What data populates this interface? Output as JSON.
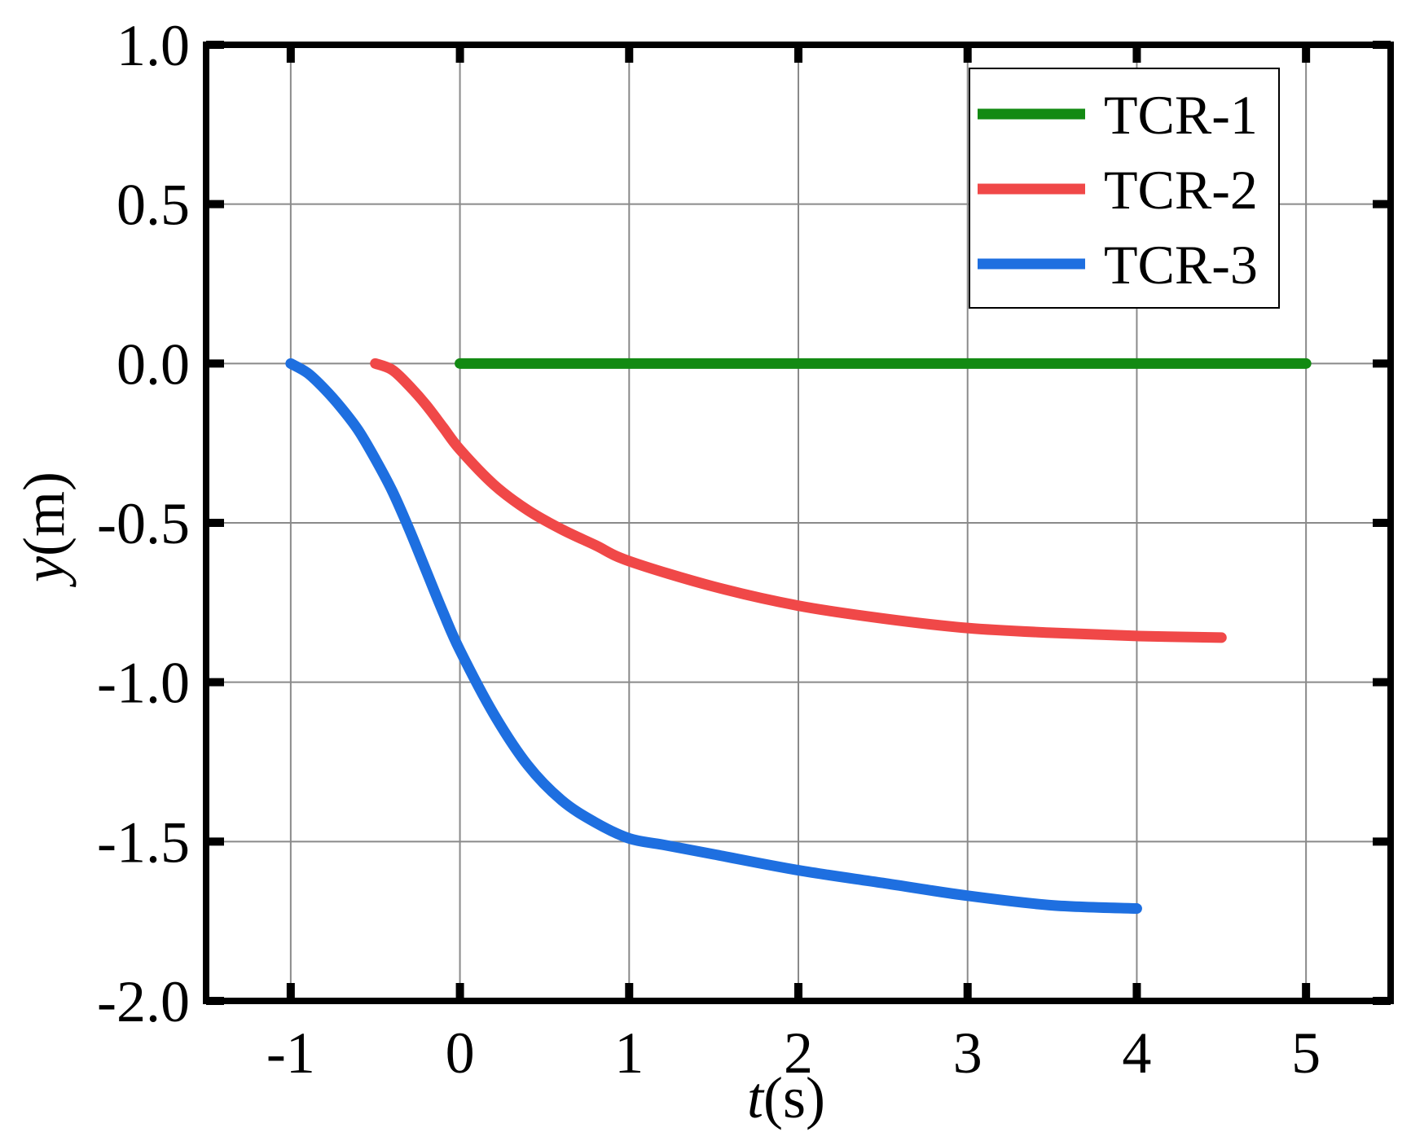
{
  "chart_data": {
    "type": "line",
    "title": "",
    "xlabel_italic": "t",
    "xlabel_rest": "(s)",
    "ylabel_italic": "y",
    "ylabel_rest": "(m)",
    "xlim": [
      -1.5,
      5.5
    ],
    "ylim": [
      -2.0,
      1.0
    ],
    "xticks": [
      -1,
      0,
      1,
      2,
      3,
      4,
      5
    ],
    "xtick_labels": [
      "-1",
      "0",
      "1",
      "2",
      "3",
      "4",
      "5"
    ],
    "yticks": [
      1.0,
      0.5,
      0.0,
      -0.5,
      -1.0,
      -1.5,
      -2.0
    ],
    "ytick_labels": [
      "1.0",
      "0.5",
      "0.0",
      "-0.5",
      "-1.0",
      "-1.5",
      "-2.0"
    ],
    "grid": true,
    "legend_position": "top-right",
    "series": [
      {
        "name": "TCR-1",
        "color": "#138a13",
        "x": [
          0,
          5
        ],
        "y": [
          0,
          0
        ]
      },
      {
        "name": "TCR-2",
        "color": "#f04848",
        "x": [
          -0.5,
          -0.4,
          -0.3,
          -0.2,
          -0.1,
          0,
          0.2,
          0.4,
          0.6,
          0.8,
          1.0,
          1.5,
          2.0,
          2.5,
          3.0,
          3.5,
          4.0,
          4.5
        ],
        "y": [
          0,
          -0.02,
          -0.07,
          -0.13,
          -0.2,
          -0.27,
          -0.38,
          -0.46,
          -0.52,
          -0.57,
          -0.62,
          -0.7,
          -0.76,
          -0.8,
          -0.83,
          -0.845,
          -0.855,
          -0.86
        ]
      },
      {
        "name": "TCR-3",
        "color": "#1e6fe0",
        "x": [
          -1.0,
          -0.9,
          -0.8,
          -0.7,
          -0.6,
          -0.5,
          -0.4,
          -0.3,
          -0.2,
          -0.1,
          0,
          0.2,
          0.4,
          0.6,
          0.8,
          1.0,
          1.2,
          1.5,
          2.0,
          2.5,
          3.0,
          3.5,
          4.0
        ],
        "y": [
          0,
          -0.03,
          -0.08,
          -0.14,
          -0.21,
          -0.3,
          -0.4,
          -0.52,
          -0.65,
          -0.78,
          -0.9,
          -1.1,
          -1.26,
          -1.37,
          -1.44,
          -1.49,
          -1.51,
          -1.54,
          -1.59,
          -1.63,
          -1.67,
          -1.7,
          -1.71
        ]
      }
    ]
  }
}
